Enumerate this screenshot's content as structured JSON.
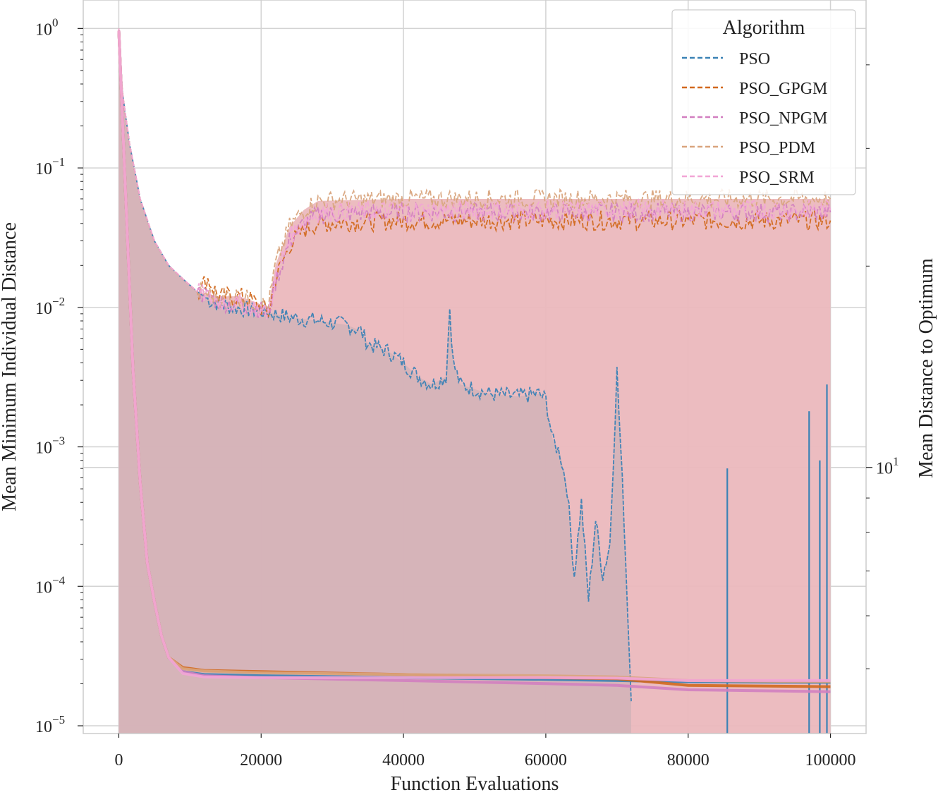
{
  "chart_data": {
    "type": "line",
    "title": "",
    "xlabel": "Function Evaluations",
    "ylabel": "Mean Minimum Individual Distance",
    "ylabel_right": "Mean Distance to Optimum",
    "xlim": [
      -5000,
      105000
    ],
    "ylim": [
      8.8e-06,
      1.6
    ],
    "yscale": "log",
    "ylim_right": [
      4,
      50
    ],
    "yscale_right": "log",
    "grid": true,
    "legend_title": "Algorithm",
    "legend_position": "top-right",
    "x_ticks": [
      "0",
      "20000",
      "40000",
      "60000",
      "80000",
      "100000"
    ],
    "x_tick_values": [
      0,
      20000,
      40000,
      60000,
      80000,
      100000
    ],
    "y_ticks": [
      {
        "value": 1,
        "base": "10",
        "exp": "0"
      },
      {
        "value": 0.1,
        "base": "10",
        "exp": "−1"
      },
      {
        "value": 0.01,
        "base": "10",
        "exp": "−2"
      },
      {
        "value": 0.001,
        "base": "10",
        "exp": "−3"
      },
      {
        "value": 0.0001,
        "base": "10",
        "exp": "−4"
      },
      {
        "value": 1e-05,
        "base": "10",
        "exp": "−5"
      }
    ],
    "y_right_ticks": [
      {
        "value": 10,
        "base": "10",
        "exp": "1"
      }
    ],
    "fill_colors": {
      "left_area": "#d4b2b8",
      "right_area": "#ebb8bd"
    },
    "series": [
      {
        "name": "PSO",
        "color": "#3b82b5",
        "style": "dashed",
        "left_points": [
          [
            0,
            1.0
          ],
          [
            500,
            0.35
          ],
          [
            1500,
            0.15
          ],
          [
            3000,
            0.06
          ],
          [
            5000,
            0.03
          ],
          [
            7000,
            0.02
          ],
          [
            9000,
            0.016
          ],
          [
            11000,
            0.013
          ],
          [
            13000,
            0.011
          ],
          [
            16000,
            0.01
          ],
          [
            19000,
            0.0095
          ],
          [
            21000,
            0.0092
          ],
          [
            24000,
            0.0085
          ],
          [
            28000,
            0.008
          ],
          [
            32000,
            0.0075
          ],
          [
            34000,
            0.0068
          ],
          [
            35000,
            0.0055
          ],
          [
            38000,
            0.0048
          ],
          [
            40000,
            0.004
          ],
          [
            42000,
            0.0032
          ],
          [
            44000,
            0.0028
          ],
          [
            46000,
            0.0032
          ],
          [
            46500,
            0.01
          ],
          [
            47000,
            0.004
          ],
          [
            48000,
            0.0028
          ],
          [
            52000,
            0.0024
          ],
          [
            56000,
            0.0023
          ],
          [
            59000,
            0.0024
          ],
          [
            60000,
            0.0022
          ],
          [
            61000,
            0.0011
          ],
          [
            62000,
            0.0009
          ],
          [
            63000,
            0.0005
          ],
          [
            64000,
            0.00012
          ],
          [
            65000,
            0.0004
          ],
          [
            66000,
            8e-05
          ],
          [
            67000,
            0.0003
          ],
          [
            68000,
            0.00012
          ],
          [
            69000,
            0.0002
          ],
          [
            70000,
            0.0035
          ],
          [
            71000,
            0.0003
          ],
          [
            72000,
            1.5e-05
          ]
        ],
        "left_spikes": [
          [
            85500,
            0.0007
          ],
          [
            97000,
            0.0018
          ],
          [
            98500,
            0.0008
          ],
          [
            99500,
            0.0028
          ]
        ],
        "right_points": [
          [
            0,
            45.0
          ],
          [
            1000,
            25.0
          ],
          [
            2000,
            14.0
          ],
          [
            3000,
            9.5
          ],
          [
            4000,
            7.2
          ],
          [
            5000,
            6.3
          ],
          [
            6000,
            5.6
          ],
          [
            7000,
            5.2
          ],
          [
            9000,
            4.95
          ],
          [
            12000,
            4.9
          ],
          [
            20000,
            4.88
          ],
          [
            40000,
            4.85
          ],
          [
            60000,
            4.82
          ],
          [
            70000,
            4.8
          ],
          [
            80000,
            4.78
          ],
          [
            100000,
            4.77
          ]
        ]
      },
      {
        "name": "PSO_GPGM",
        "color": "#d2691e",
        "style": "dashed",
        "left_points": [
          [
            0,
            1.0
          ],
          [
            500,
            0.35
          ],
          [
            1500,
            0.15
          ],
          [
            3000,
            0.06
          ],
          [
            5000,
            0.03
          ],
          [
            7000,
            0.02
          ],
          [
            9000,
            0.016
          ],
          [
            11000,
            0.013
          ],
          [
            12500,
            0.016
          ],
          [
            14000,
            0.012
          ],
          [
            17000,
            0.012
          ],
          [
            19000,
            0.011
          ],
          [
            21000,
            0.009
          ],
          [
            22000,
            0.016
          ],
          [
            24000,
            0.028
          ],
          [
            26000,
            0.036
          ],
          [
            28000,
            0.04
          ],
          [
            40000,
            0.042
          ],
          [
            60000,
            0.042
          ],
          [
            80000,
            0.042
          ],
          [
            100000,
            0.042
          ]
        ],
        "right_points": [
          [
            0,
            45.0
          ],
          [
            1000,
            25.0
          ],
          [
            2000,
            14.0
          ],
          [
            3000,
            9.5
          ],
          [
            4000,
            7.2
          ],
          [
            5000,
            6.3
          ],
          [
            6000,
            5.6
          ],
          [
            7000,
            5.2
          ],
          [
            9000,
            5.02
          ],
          [
            12000,
            4.97
          ],
          [
            20000,
            4.95
          ],
          [
            40000,
            4.9
          ],
          [
            60000,
            4.85
          ],
          [
            70000,
            4.83
          ],
          [
            80000,
            4.72
          ],
          [
            100000,
            4.7
          ]
        ]
      },
      {
        "name": "PSO_NPGM",
        "color": "#d27fc0",
        "style": "dashed",
        "left_points": [
          [
            0,
            1.0
          ],
          [
            500,
            0.35
          ],
          [
            1500,
            0.15
          ],
          [
            3000,
            0.06
          ],
          [
            5000,
            0.03
          ],
          [
            7000,
            0.02
          ],
          [
            9000,
            0.016
          ],
          [
            11000,
            0.013
          ],
          [
            14000,
            0.011
          ],
          [
            17000,
            0.0105
          ],
          [
            19000,
            0.01
          ],
          [
            21000,
            0.009
          ],
          [
            22000,
            0.015
          ],
          [
            24000,
            0.03
          ],
          [
            26000,
            0.04
          ],
          [
            28000,
            0.046
          ],
          [
            40000,
            0.048
          ],
          [
            60000,
            0.048
          ],
          [
            80000,
            0.048
          ],
          [
            100000,
            0.048
          ]
        ],
        "right_points": [
          [
            0,
            45.0
          ],
          [
            1000,
            25.0
          ],
          [
            2000,
            14.0
          ],
          [
            3000,
            9.5
          ],
          [
            4000,
            7.2
          ],
          [
            5000,
            6.3
          ],
          [
            6000,
            5.6
          ],
          [
            7000,
            5.2
          ],
          [
            9000,
            4.95
          ],
          [
            12000,
            4.88
          ],
          [
            20000,
            4.85
          ],
          [
            40000,
            4.8
          ],
          [
            60000,
            4.75
          ],
          [
            70000,
            4.72
          ],
          [
            80000,
            4.65
          ],
          [
            100000,
            4.62
          ]
        ]
      },
      {
        "name": "PSO_PDM",
        "color": "#d9a57e",
        "style": "dashed",
        "left_points": [
          [
            0,
            1.0
          ],
          [
            500,
            0.35
          ],
          [
            1500,
            0.15
          ],
          [
            3000,
            0.06
          ],
          [
            5000,
            0.03
          ],
          [
            7000,
            0.02
          ],
          [
            9000,
            0.016
          ],
          [
            11000,
            0.013
          ],
          [
            14000,
            0.012
          ],
          [
            17000,
            0.012
          ],
          [
            19000,
            0.011
          ],
          [
            21000,
            0.01
          ],
          [
            22000,
            0.02
          ],
          [
            24000,
            0.038
          ],
          [
            26000,
            0.05
          ],
          [
            28000,
            0.058
          ],
          [
            40000,
            0.06
          ],
          [
            60000,
            0.06
          ],
          [
            80000,
            0.06
          ],
          [
            100000,
            0.06
          ]
        ],
        "right_points": [
          [
            0,
            45.0
          ],
          [
            1000,
            25.0
          ],
          [
            2000,
            14.0
          ],
          [
            3000,
            9.5
          ],
          [
            4000,
            7.2
          ],
          [
            5000,
            6.3
          ],
          [
            6000,
            5.6
          ],
          [
            7000,
            5.2
          ],
          [
            9000,
            5.0
          ],
          [
            12000,
            4.96
          ],
          [
            20000,
            4.93
          ],
          [
            40000,
            4.9
          ],
          [
            60000,
            4.88
          ],
          [
            70000,
            4.86
          ],
          [
            80000,
            4.8
          ],
          [
            100000,
            4.78
          ]
        ]
      },
      {
        "name": "PSO_SRM",
        "color": "#f2a5d6",
        "style": "dashed",
        "left_points": [
          [
            0,
            1.0
          ],
          [
            500,
            0.35
          ],
          [
            1500,
            0.15
          ],
          [
            3000,
            0.06
          ],
          [
            5000,
            0.03
          ],
          [
            7000,
            0.02
          ],
          [
            9000,
            0.016
          ],
          [
            11000,
            0.013
          ],
          [
            14000,
            0.011
          ],
          [
            17000,
            0.0105
          ],
          [
            19000,
            0.01
          ],
          [
            21000,
            0.009
          ],
          [
            22000,
            0.016
          ],
          [
            24000,
            0.032
          ],
          [
            26000,
            0.042
          ],
          [
            28000,
            0.048
          ],
          [
            40000,
            0.05
          ],
          [
            60000,
            0.05
          ],
          [
            80000,
            0.05
          ],
          [
            100000,
            0.05
          ]
        ],
        "right_points": [
          [
            0,
            45.0
          ],
          [
            1000,
            25.0
          ],
          [
            2000,
            14.0
          ],
          [
            3000,
            9.5
          ],
          [
            4000,
            7.2
          ],
          [
            5000,
            6.3
          ],
          [
            6000,
            5.6
          ],
          [
            7000,
            5.2
          ],
          [
            9000,
            4.92
          ],
          [
            12000,
            4.86
          ],
          [
            20000,
            4.85
          ],
          [
            40000,
            4.85
          ],
          [
            60000,
            4.85
          ],
          [
            70000,
            4.84
          ],
          [
            80000,
            4.8
          ],
          [
            100000,
            4.8
          ]
        ]
      }
    ]
  }
}
